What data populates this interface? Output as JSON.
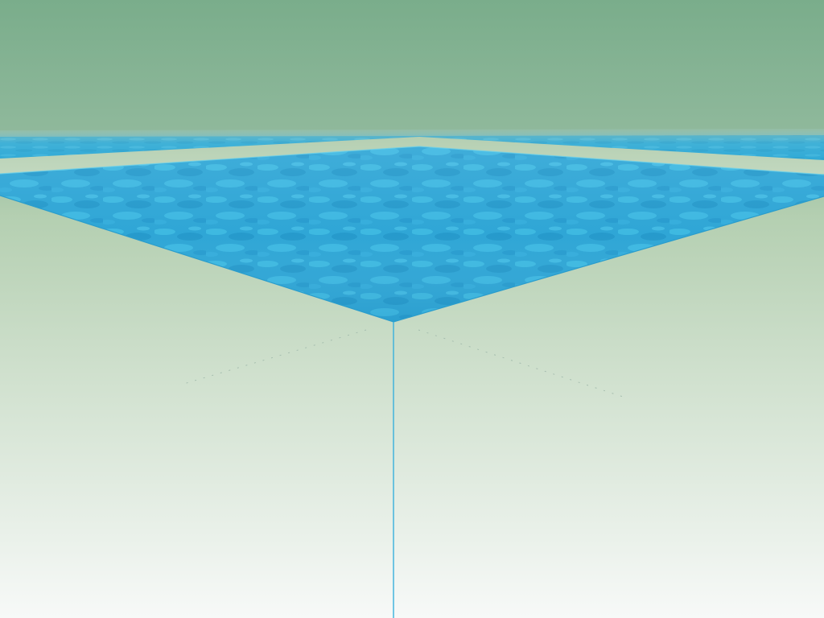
{
  "scene": {
    "title": "",
    "description_visible_text": "",
    "colors": {
      "sky_top": "#7fb08d",
      "sky_horizon": "#a9c9a8",
      "haze": "#c3d8c0",
      "ground_bottom": "#f6f8f7",
      "water_light": "#3db8df",
      "water_mid": "#2ea4d3",
      "water_dark": "#218fc2",
      "edge_line": "#2ea9d2"
    }
  }
}
